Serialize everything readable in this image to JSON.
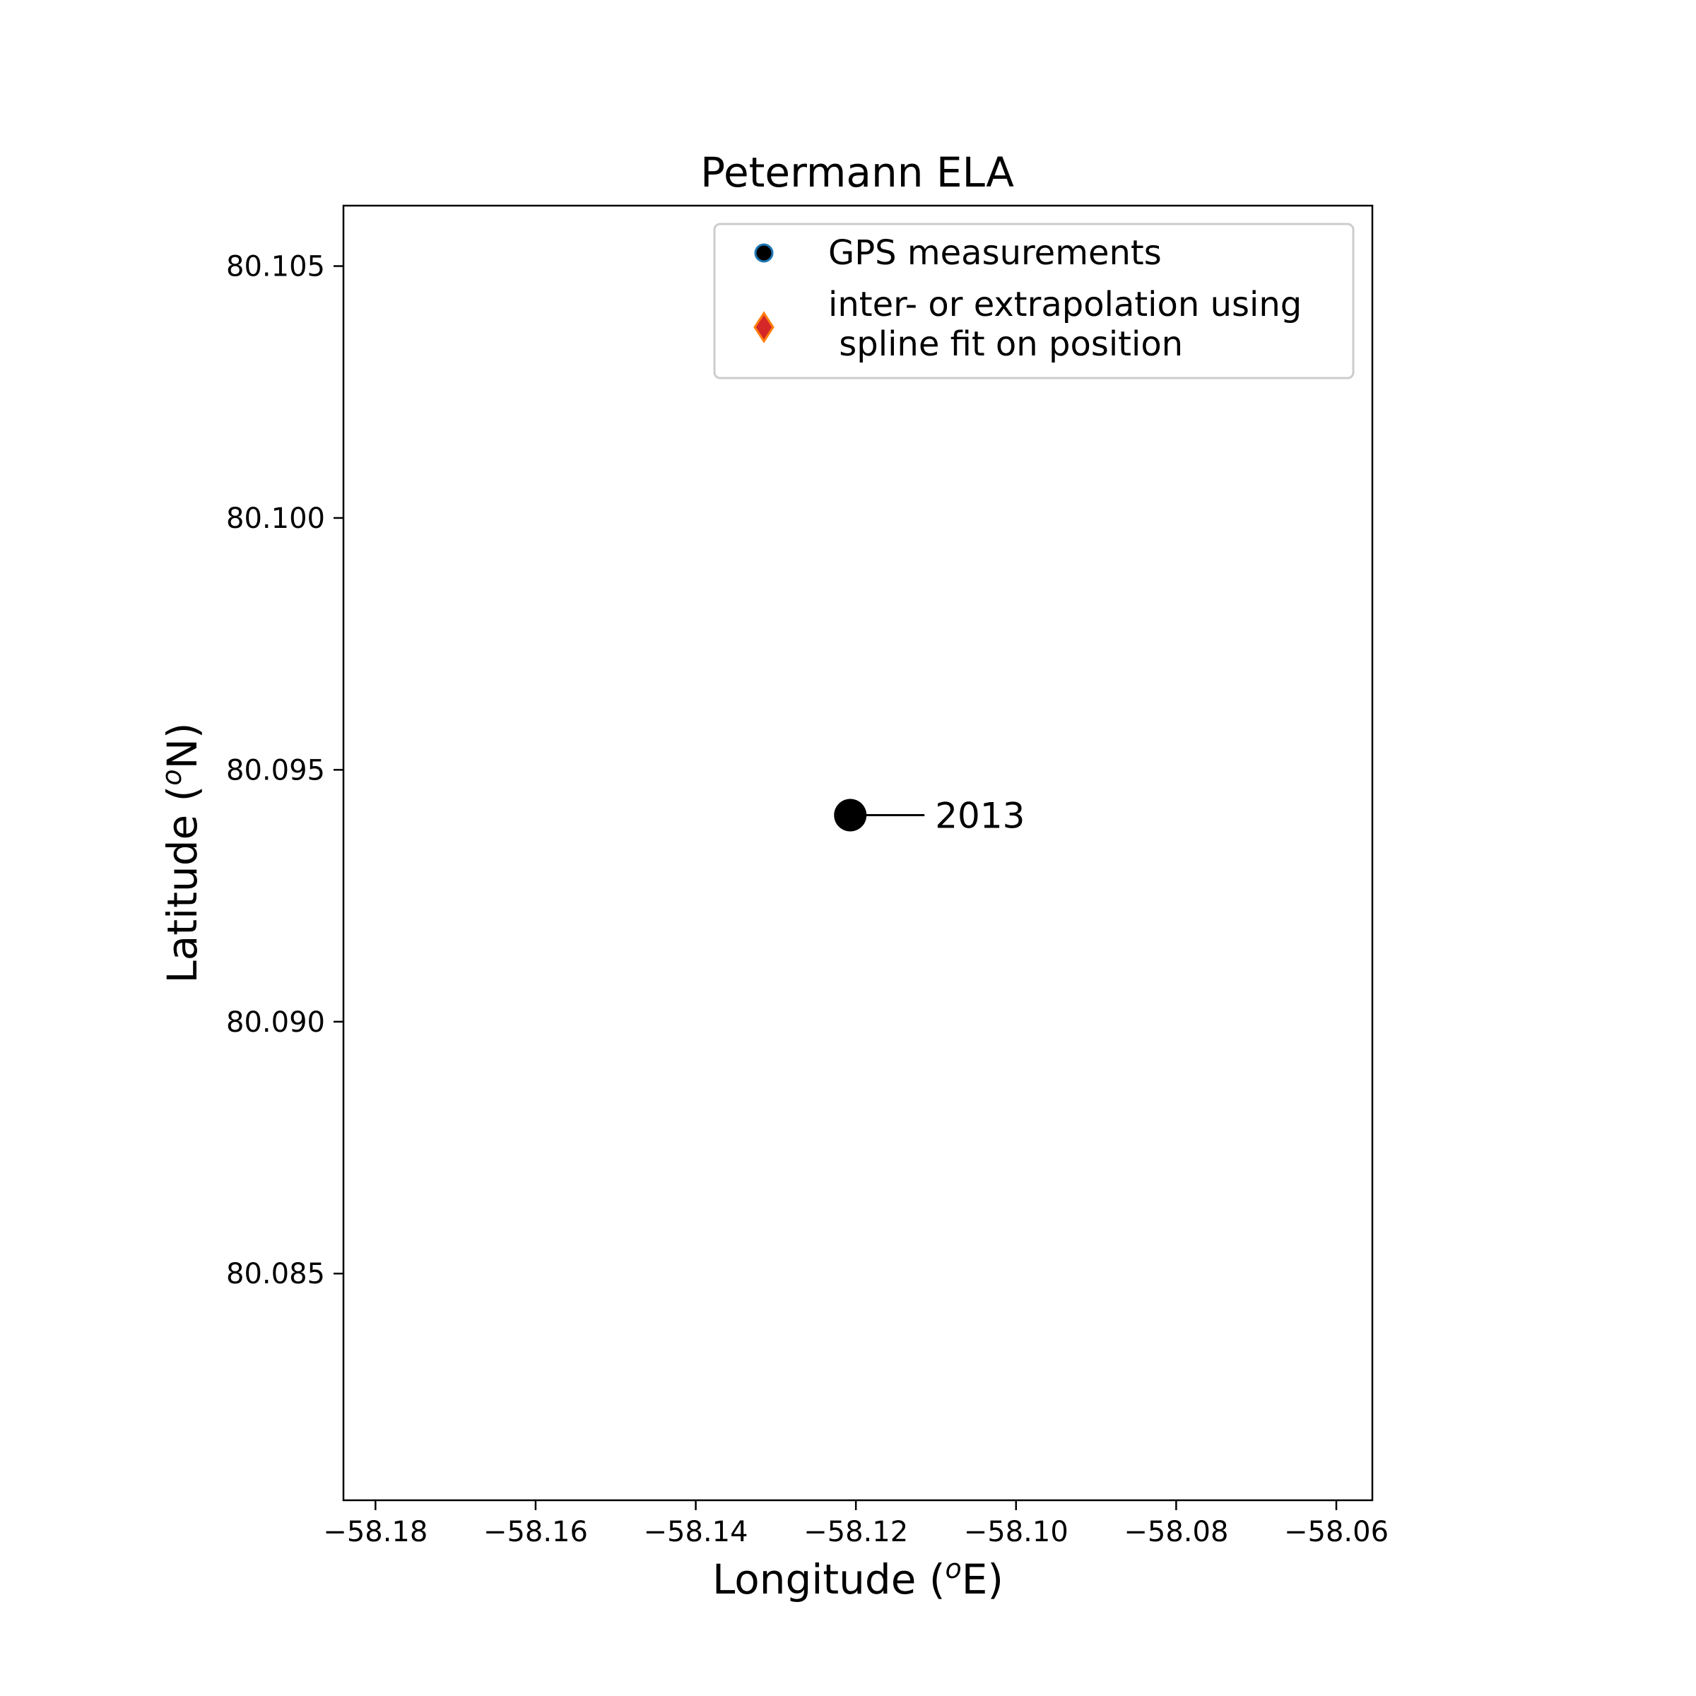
{
  "chart_data": {
    "type": "scatter",
    "title": "Petermann ELA",
    "xlabel_main": "Longitude (",
    "xlabel_sup": "o",
    "xlabel_tail": "E)",
    "ylabel_main": "Latitude (",
    "ylabel_sup": "o",
    "ylabel_tail": "N)",
    "xlim": [
      -58.184,
      -58.0555
    ],
    "ylim": [
      80.0805,
      80.1062
    ],
    "xticks": [
      -58.18,
      -58.16,
      -58.14,
      -58.12,
      -58.1,
      -58.08,
      -58.06
    ],
    "xtick_labels": [
      "−58.18",
      "−58.16",
      "−58.14",
      "−58.12",
      "−58.10",
      "−58.08",
      "−58.06"
    ],
    "yticks": [
      80.085,
      80.09,
      80.095,
      80.1,
      80.105
    ],
    "ytick_labels": [
      "80.085",
      "80.090",
      "80.095",
      "80.100",
      "80.105"
    ],
    "legend": {
      "position": "upper-right",
      "entries": [
        {
          "label": "GPS measurements",
          "marker": "circle",
          "face_color": "#000000",
          "edge_color": "#1f77b4"
        },
        {
          "label_line1": "inter- or extrapolation using",
          "label_line2": " spline fit on position",
          "marker": "diamond",
          "face_color": "#d62728",
          "edge_color": "#ff7f0e"
        }
      ]
    },
    "series": [
      {
        "name": "GPS measurements",
        "points": [
          {
            "x": -58.1207,
            "y": 80.0941
          }
        ],
        "color": "#000000"
      }
    ],
    "annotations": [
      {
        "text": "2013",
        "x": -58.1207,
        "y": 80.0941
      }
    ],
    "grid": false
  }
}
